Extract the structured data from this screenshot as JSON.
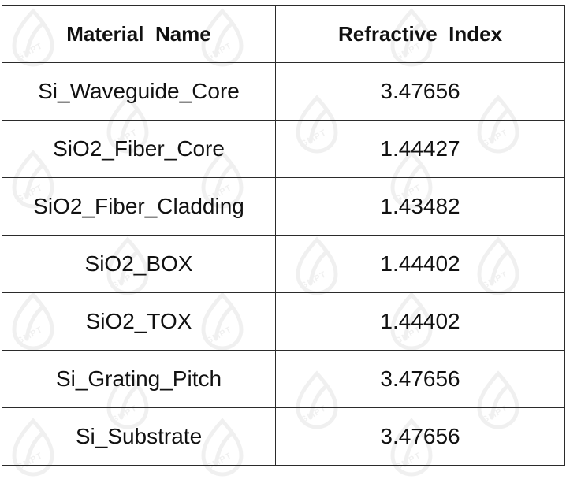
{
  "watermark": {
    "text": "GMPT",
    "icon": "leaf-drop-logo-icon",
    "color": "#7a7a7a"
  },
  "table": {
    "headers": [
      "Material_Name",
      "Refractive_Index"
    ],
    "rows": [
      [
        "Si_Waveguide_Core",
        "3.47656"
      ],
      [
        "SiO2_Fiber_Core",
        "1.44427"
      ],
      [
        "SiO2_Fiber_Cladding",
        "1.43482"
      ],
      [
        "SiO2_BOX",
        "1.44402"
      ],
      [
        "SiO2_TOX",
        "1.44402"
      ],
      [
        "Si_Grating_Pitch",
        "3.47656"
      ],
      [
        "Si_Substrate",
        "3.47656"
      ]
    ]
  }
}
